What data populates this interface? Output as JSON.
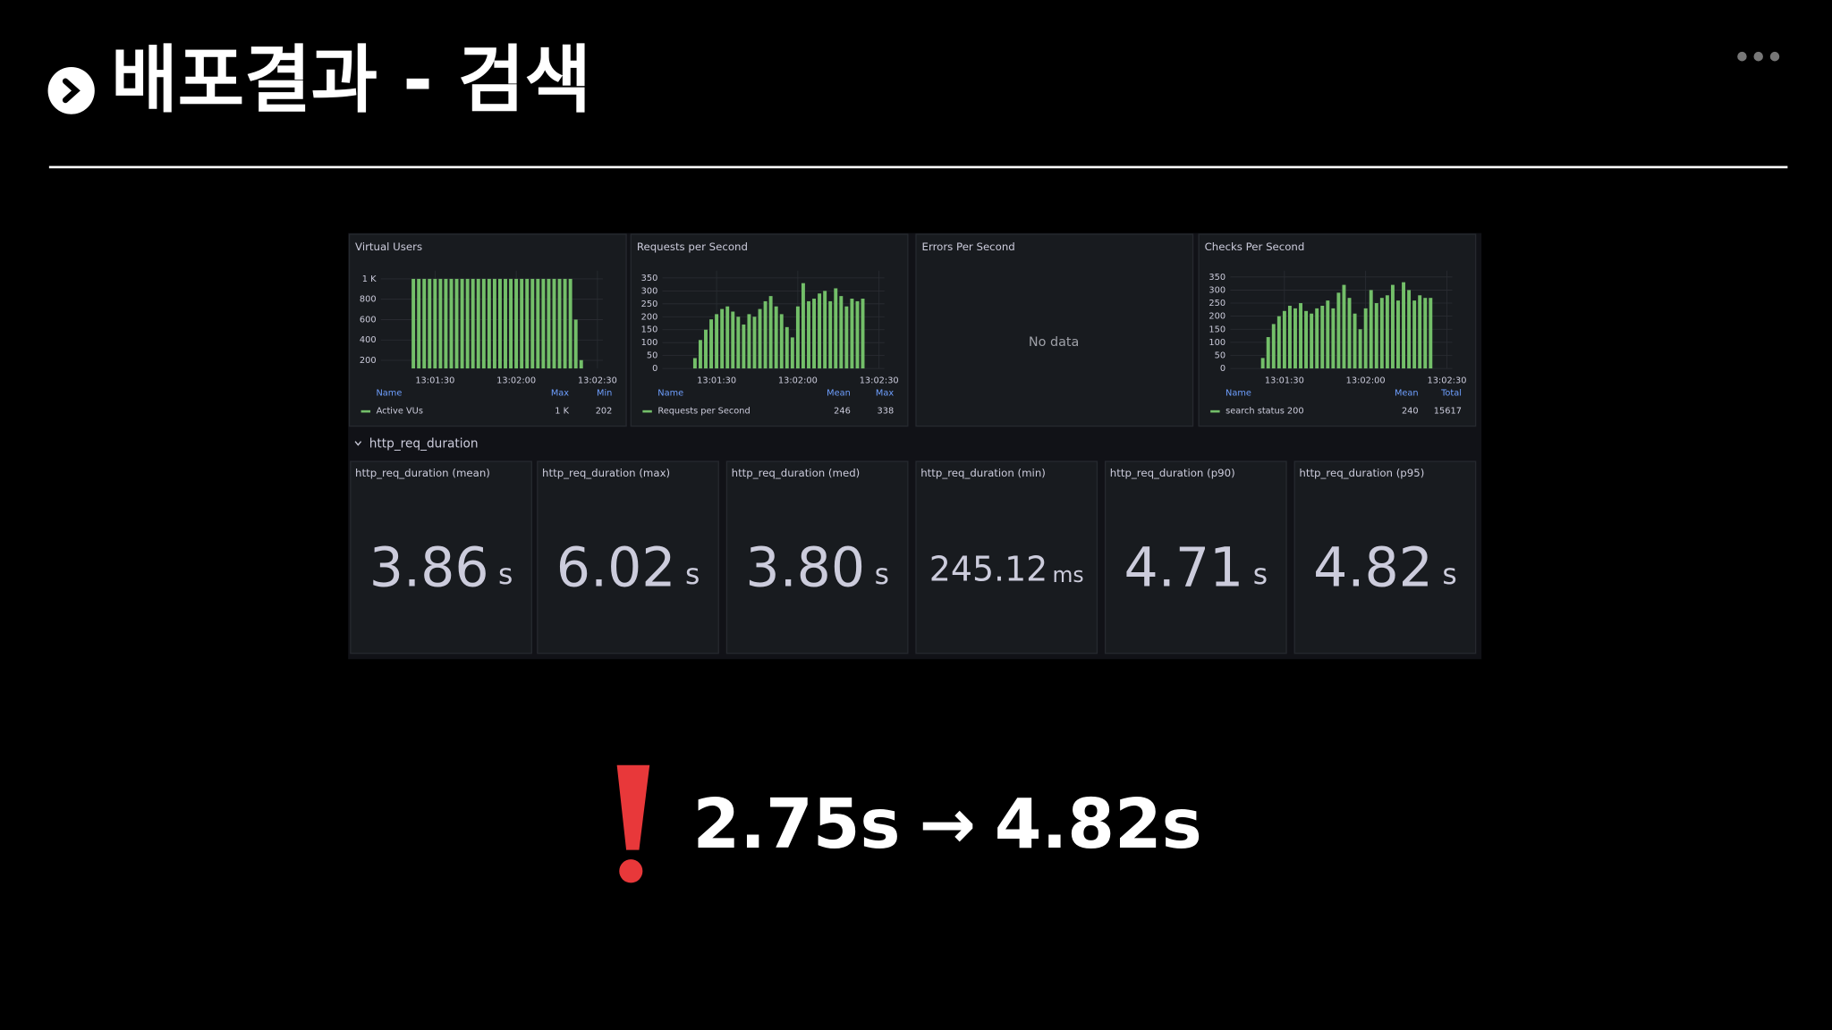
{
  "header": {
    "title": "배포결과 - 검색"
  },
  "panels": [
    {
      "type": "bar",
      "title": "Virtual Users",
      "color": "#73bf69",
      "x": [
        "13:01:22",
        "13:01:24",
        "13:01:26",
        "13:01:28",
        "13:01:30",
        "13:01:32",
        "13:01:34",
        "13:01:36",
        "13:01:38",
        "13:01:40",
        "13:01:42",
        "13:01:44",
        "13:01:46",
        "13:01:48",
        "13:01:50",
        "13:01:52",
        "13:01:54",
        "13:01:56",
        "13:01:58",
        "13:02:00",
        "13:02:02",
        "13:02:04",
        "13:02:06",
        "13:02:08",
        "13:02:10",
        "13:02:12",
        "13:02:14",
        "13:02:16",
        "13:02:18",
        "13:02:20",
        "13:02:22",
        "13:02:24"
      ],
      "values": [
        1000,
        1000,
        1000,
        1000,
        1000,
        1000,
        1000,
        1000,
        1000,
        1000,
        1000,
        1000,
        1000,
        1000,
        1000,
        1000,
        1000,
        1000,
        1000,
        1000,
        1000,
        1000,
        1000,
        1000,
        1000,
        1000,
        1000,
        1000,
        1000,
        1000,
        600,
        202
      ],
      "xlim": [
        "13:01:10",
        "13:02:32"
      ],
      "xticks": [
        "13:01:30",
        "13:02:00",
        "13:02:30"
      ],
      "ylim": [
        120,
        1080
      ],
      "yticks": [
        200,
        400,
        600,
        800,
        {
          "value": 1000,
          "label": "1 K"
        }
      ],
      "legend": {
        "columns": [
          "Name",
          "Max",
          "Min"
        ],
        "rows": [
          [
            "Active VUs",
            "1 K",
            "202"
          ]
        ]
      }
    },
    {
      "type": "bar",
      "title": "Requests per Second",
      "color": "#73bf69",
      "x": [
        "13:01:22",
        "13:01:24",
        "13:01:26",
        "13:01:28",
        "13:01:30",
        "13:01:32",
        "13:01:34",
        "13:01:36",
        "13:01:38",
        "13:01:40",
        "13:01:42",
        "13:01:44",
        "13:01:46",
        "13:01:48",
        "13:01:50",
        "13:01:52",
        "13:01:54",
        "13:01:56",
        "13:01:58",
        "13:02:00",
        "13:02:02",
        "13:02:04",
        "13:02:06",
        "13:02:08",
        "13:02:10",
        "13:02:12",
        "13:02:14",
        "13:02:16",
        "13:02:18",
        "13:02:20",
        "13:02:22",
        "13:02:24"
      ],
      "values": [
        40,
        110,
        150,
        190,
        210,
        230,
        240,
        220,
        200,
        170,
        210,
        200,
        230,
        260,
        280,
        240,
        210,
        160,
        120,
        240,
        330,
        260,
        270,
        290,
        300,
        260,
        310,
        280,
        240,
        270,
        260,
        270
      ],
      "xlim": [
        "13:01:10",
        "13:02:32"
      ],
      "xticks": [
        "13:01:30",
        "13:02:00",
        "13:02:30"
      ],
      "ylim": [
        0,
        378
      ],
      "yticks": [
        0,
        50,
        100,
        150,
        200,
        250,
        300,
        350
      ],
      "legend": {
        "columns": [
          "Name",
          "Mean",
          "Max"
        ],
        "rows": [
          [
            "Requests per Second",
            "246",
            "338"
          ]
        ]
      }
    },
    {
      "type": "bar",
      "title": "Checks Per Second",
      "color": "#73bf69",
      "x": [
        "13:01:22",
        "13:01:24",
        "13:01:26",
        "13:01:28",
        "13:01:30",
        "13:01:32",
        "13:01:34",
        "13:01:36",
        "13:01:38",
        "13:01:40",
        "13:01:42",
        "13:01:44",
        "13:01:46",
        "13:01:48",
        "13:01:50",
        "13:01:52",
        "13:01:54",
        "13:01:56",
        "13:01:58",
        "13:02:00",
        "13:02:02",
        "13:02:04",
        "13:02:06",
        "13:02:08",
        "13:02:10",
        "13:02:12",
        "13:02:14",
        "13:02:16",
        "13:02:18",
        "13:02:20",
        "13:02:22",
        "13:02:24"
      ],
      "values": [
        40,
        120,
        170,
        200,
        220,
        240,
        230,
        250,
        220,
        210,
        230,
        240,
        260,
        230,
        290,
        320,
        270,
        210,
        150,
        230,
        300,
        250,
        270,
        280,
        320,
        260,
        330,
        300,
        260,
        280,
        270,
        270
      ],
      "xlim": [
        "13:01:10",
        "13:02:32"
      ],
      "xticks": [
        "13:01:30",
        "13:02:00",
        "13:02:30"
      ],
      "ylim": [
        0,
        374
      ],
      "yticks": [
        0,
        50,
        100,
        150,
        200,
        250,
        300,
        350
      ],
      "legend": {
        "columns": [
          "Name",
          "Mean",
          "Total"
        ],
        "rows": [
          [
            "search status 200",
            "240",
            "15617"
          ]
        ]
      }
    }
  ],
  "errors_panel": {
    "title": "Errors Per Second",
    "message": "No data"
  },
  "row_title": "http_req_duration",
  "stats": [
    {
      "title": "http_req_duration (mean)",
      "value": "3.86",
      "unit": "s"
    },
    {
      "title": "http_req_duration (max)",
      "value": "6.02",
      "unit": "s"
    },
    {
      "title": "http_req_duration (med)",
      "value": "3.80",
      "unit": "s"
    },
    {
      "title": "http_req_duration (min)",
      "value": "245.12",
      "unit": "ms"
    },
    {
      "title": "http_req_duration (p90)",
      "value": "4.71",
      "unit": "s"
    },
    {
      "title": "http_req_duration (p95)",
      "value": "4.82",
      "unit": "s"
    }
  ],
  "summary": {
    "before": "2.75s",
    "arrow": "→",
    "after": "4.82s"
  }
}
